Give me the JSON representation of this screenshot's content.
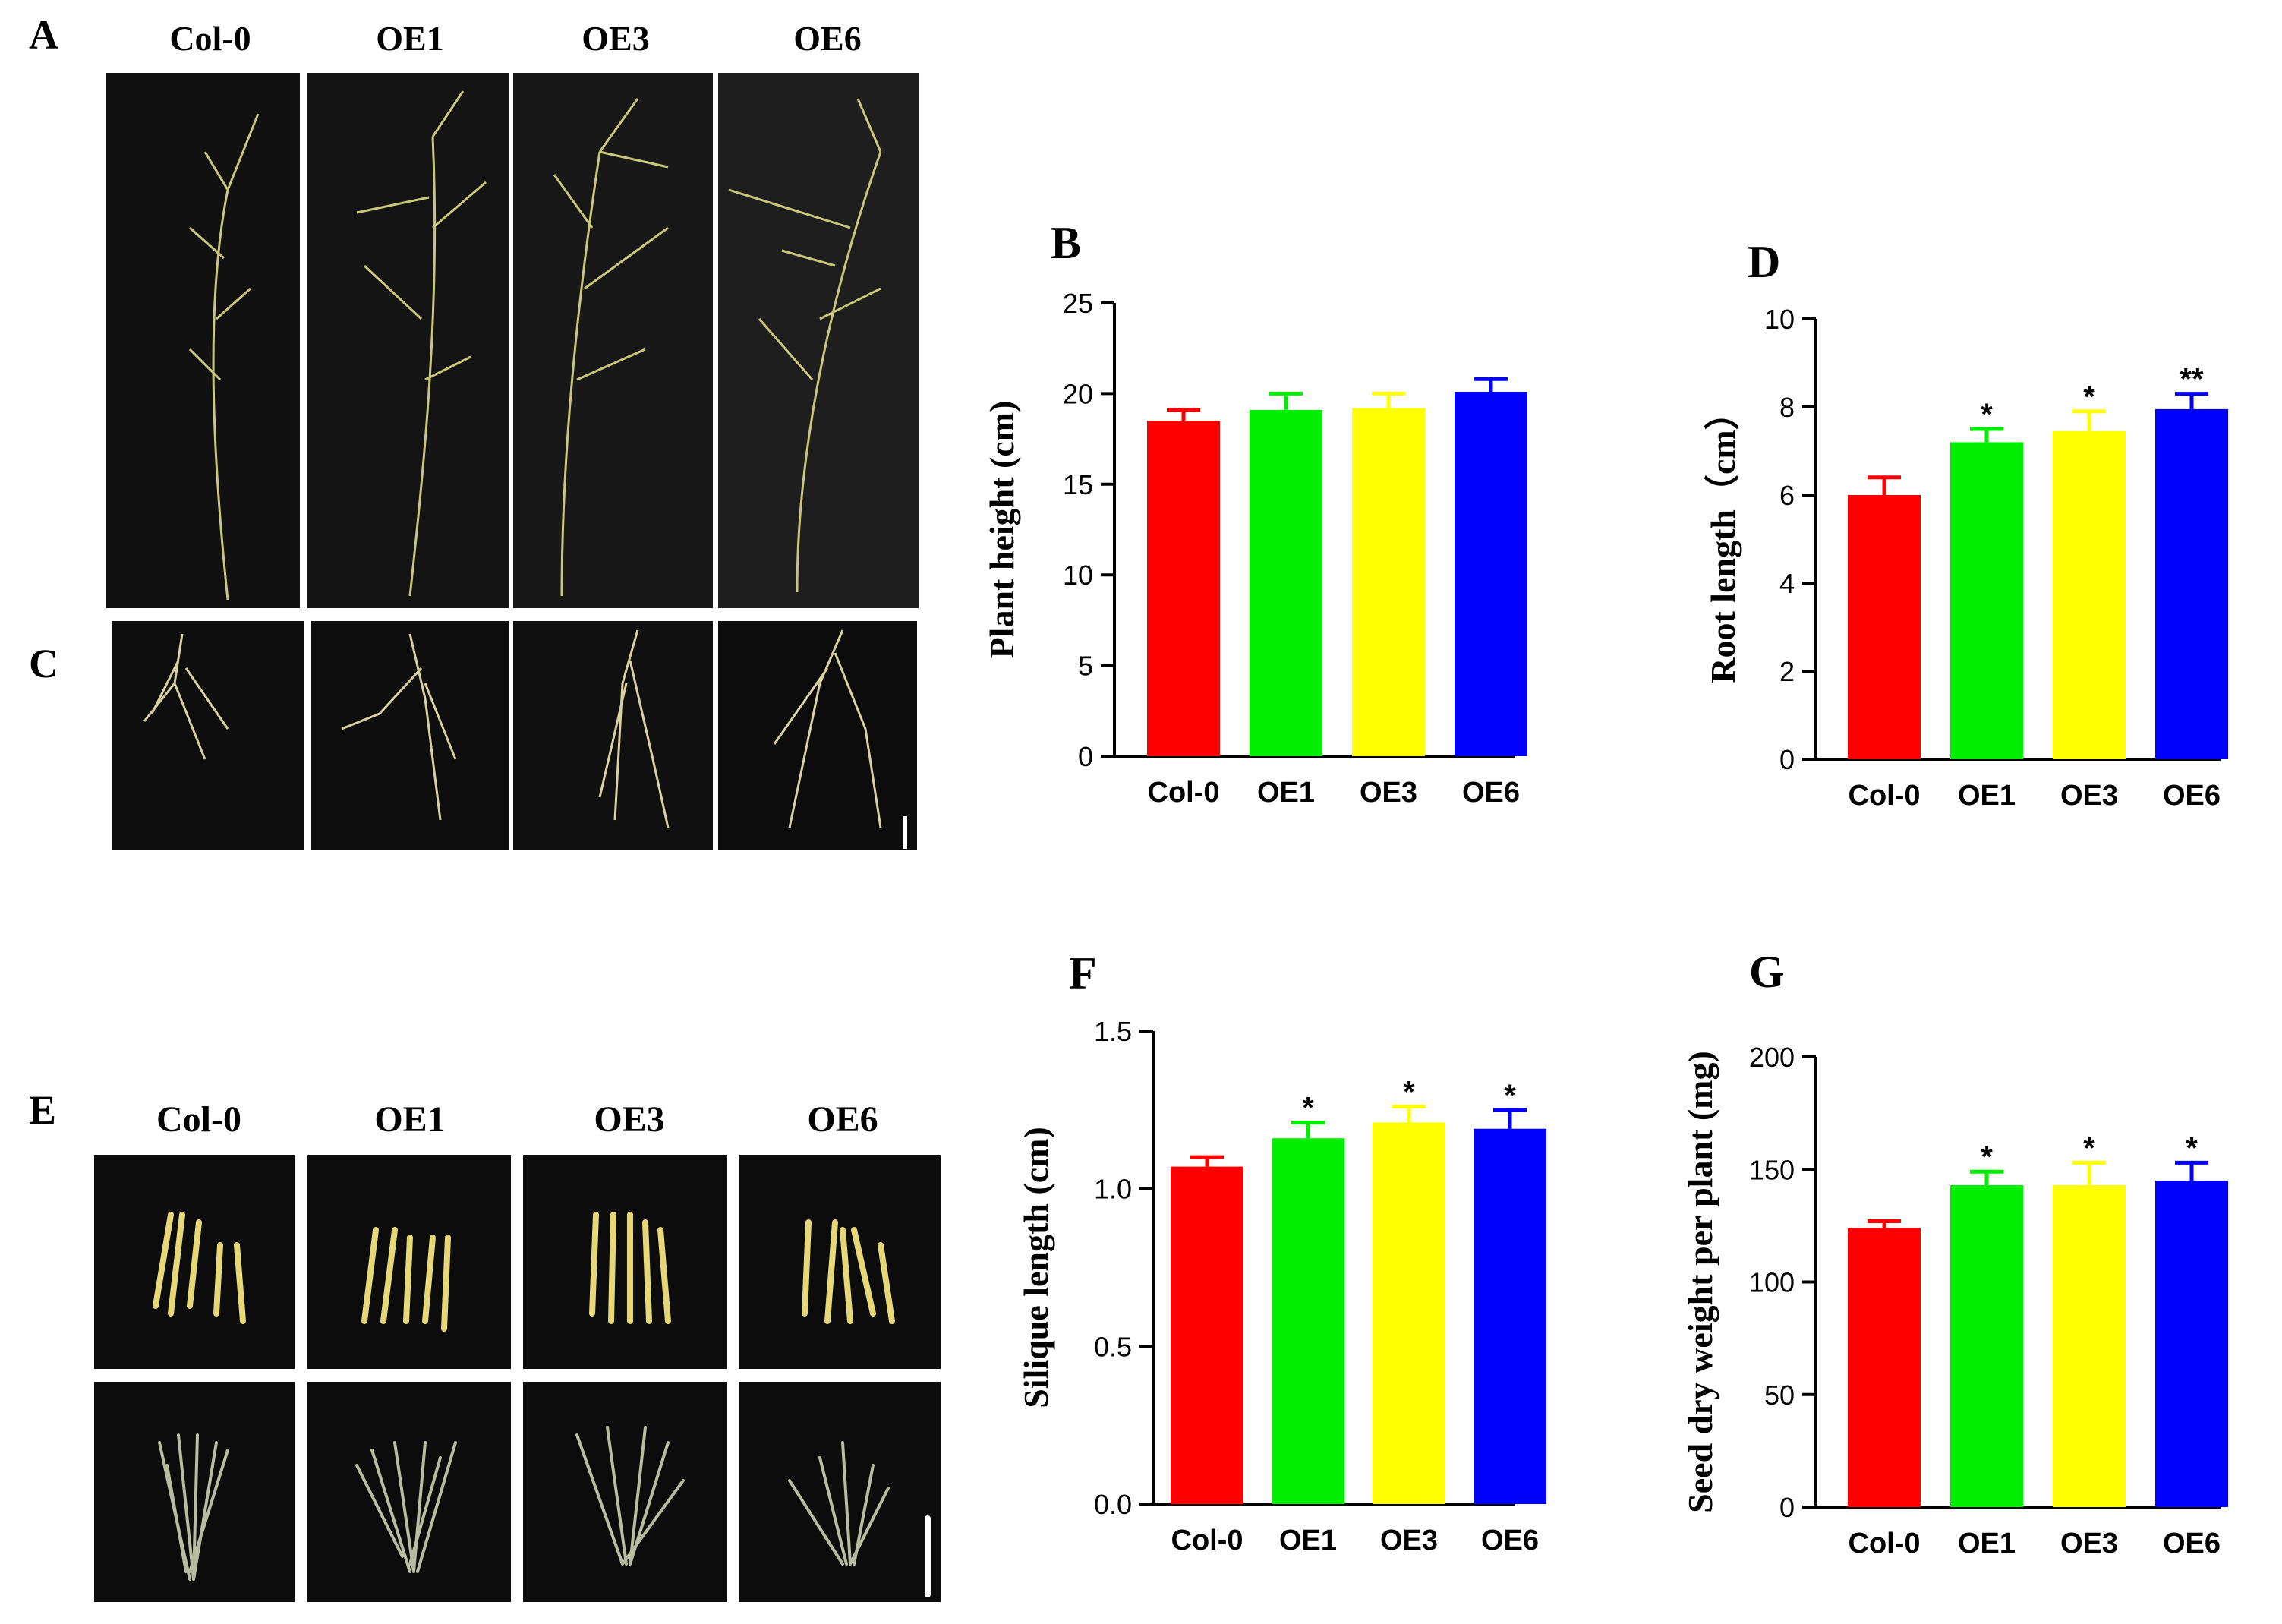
{
  "photo_panels": {
    "A": {
      "letter": "A",
      "genotypes": [
        "Col-0",
        "OE1",
        "OE3",
        "OE6"
      ]
    },
    "C": {
      "letter": "C"
    },
    "E": {
      "letter": "E",
      "genotypes": [
        "Col-0",
        "OE1",
        "OE3",
        "OE6"
      ]
    }
  },
  "colors": {
    "Col-0": "#ff0000",
    "OE1": "#00ee00",
    "OE3": "#ffff00",
    "OE6": "#0000ff"
  },
  "chart_data": [
    {
      "panel": "B",
      "type": "bar",
      "categories": [
        "Col-0",
        "OE1",
        "OE3",
        "OE6"
      ],
      "values": [
        18.5,
        19.1,
        19.2,
        20.1
      ],
      "errors": [
        0.6,
        0.9,
        0.8,
        0.7
      ],
      "significance": [
        "",
        "",
        "",
        ""
      ],
      "ylabel": "Plant height (cm)",
      "ylim": [
        0,
        25
      ],
      "yticks": [
        "0",
        "5",
        "10",
        "15",
        "20",
        "25"
      ]
    },
    {
      "panel": "D",
      "type": "bar",
      "categories": [
        "Col-0",
        "OE1",
        "OE3",
        "OE6"
      ],
      "values": [
        6.0,
        7.2,
        7.45,
        7.95
      ],
      "errors": [
        0.4,
        0.3,
        0.45,
        0.35
      ],
      "significance": [
        "",
        "*",
        "*",
        "**"
      ],
      "ylabel": "Root length（cm）",
      "ylim": [
        0,
        10
      ],
      "yticks": [
        "0",
        "2",
        "4",
        "6",
        "8",
        "10"
      ]
    },
    {
      "panel": "F",
      "type": "bar",
      "categories": [
        "Col-0",
        "OE1",
        "OE3",
        "OE6"
      ],
      "values": [
        1.07,
        1.16,
        1.21,
        1.19
      ],
      "errors": [
        0.03,
        0.05,
        0.05,
        0.06
      ],
      "significance": [
        "",
        "*",
        "*",
        "*"
      ],
      "ylabel": "Silique length (cm)",
      "ylim": [
        0,
        1.5
      ],
      "yticks": [
        "0.0",
        "0.5",
        "1.0",
        "1.5"
      ]
    },
    {
      "panel": "G",
      "type": "bar",
      "categories": [
        "Col-0",
        "OE1",
        "OE3",
        "OE6"
      ],
      "values": [
        124,
        143,
        143,
        145
      ],
      "errors": [
        3,
        6,
        10,
        8
      ],
      "significance": [
        "",
        "*",
        "*",
        "*"
      ],
      "ylabel": "Seed dry weight per plant (mg)",
      "ylim": [
        0,
        200
      ],
      "yticks": [
        "0",
        "50",
        "100",
        "150",
        "200"
      ]
    }
  ]
}
